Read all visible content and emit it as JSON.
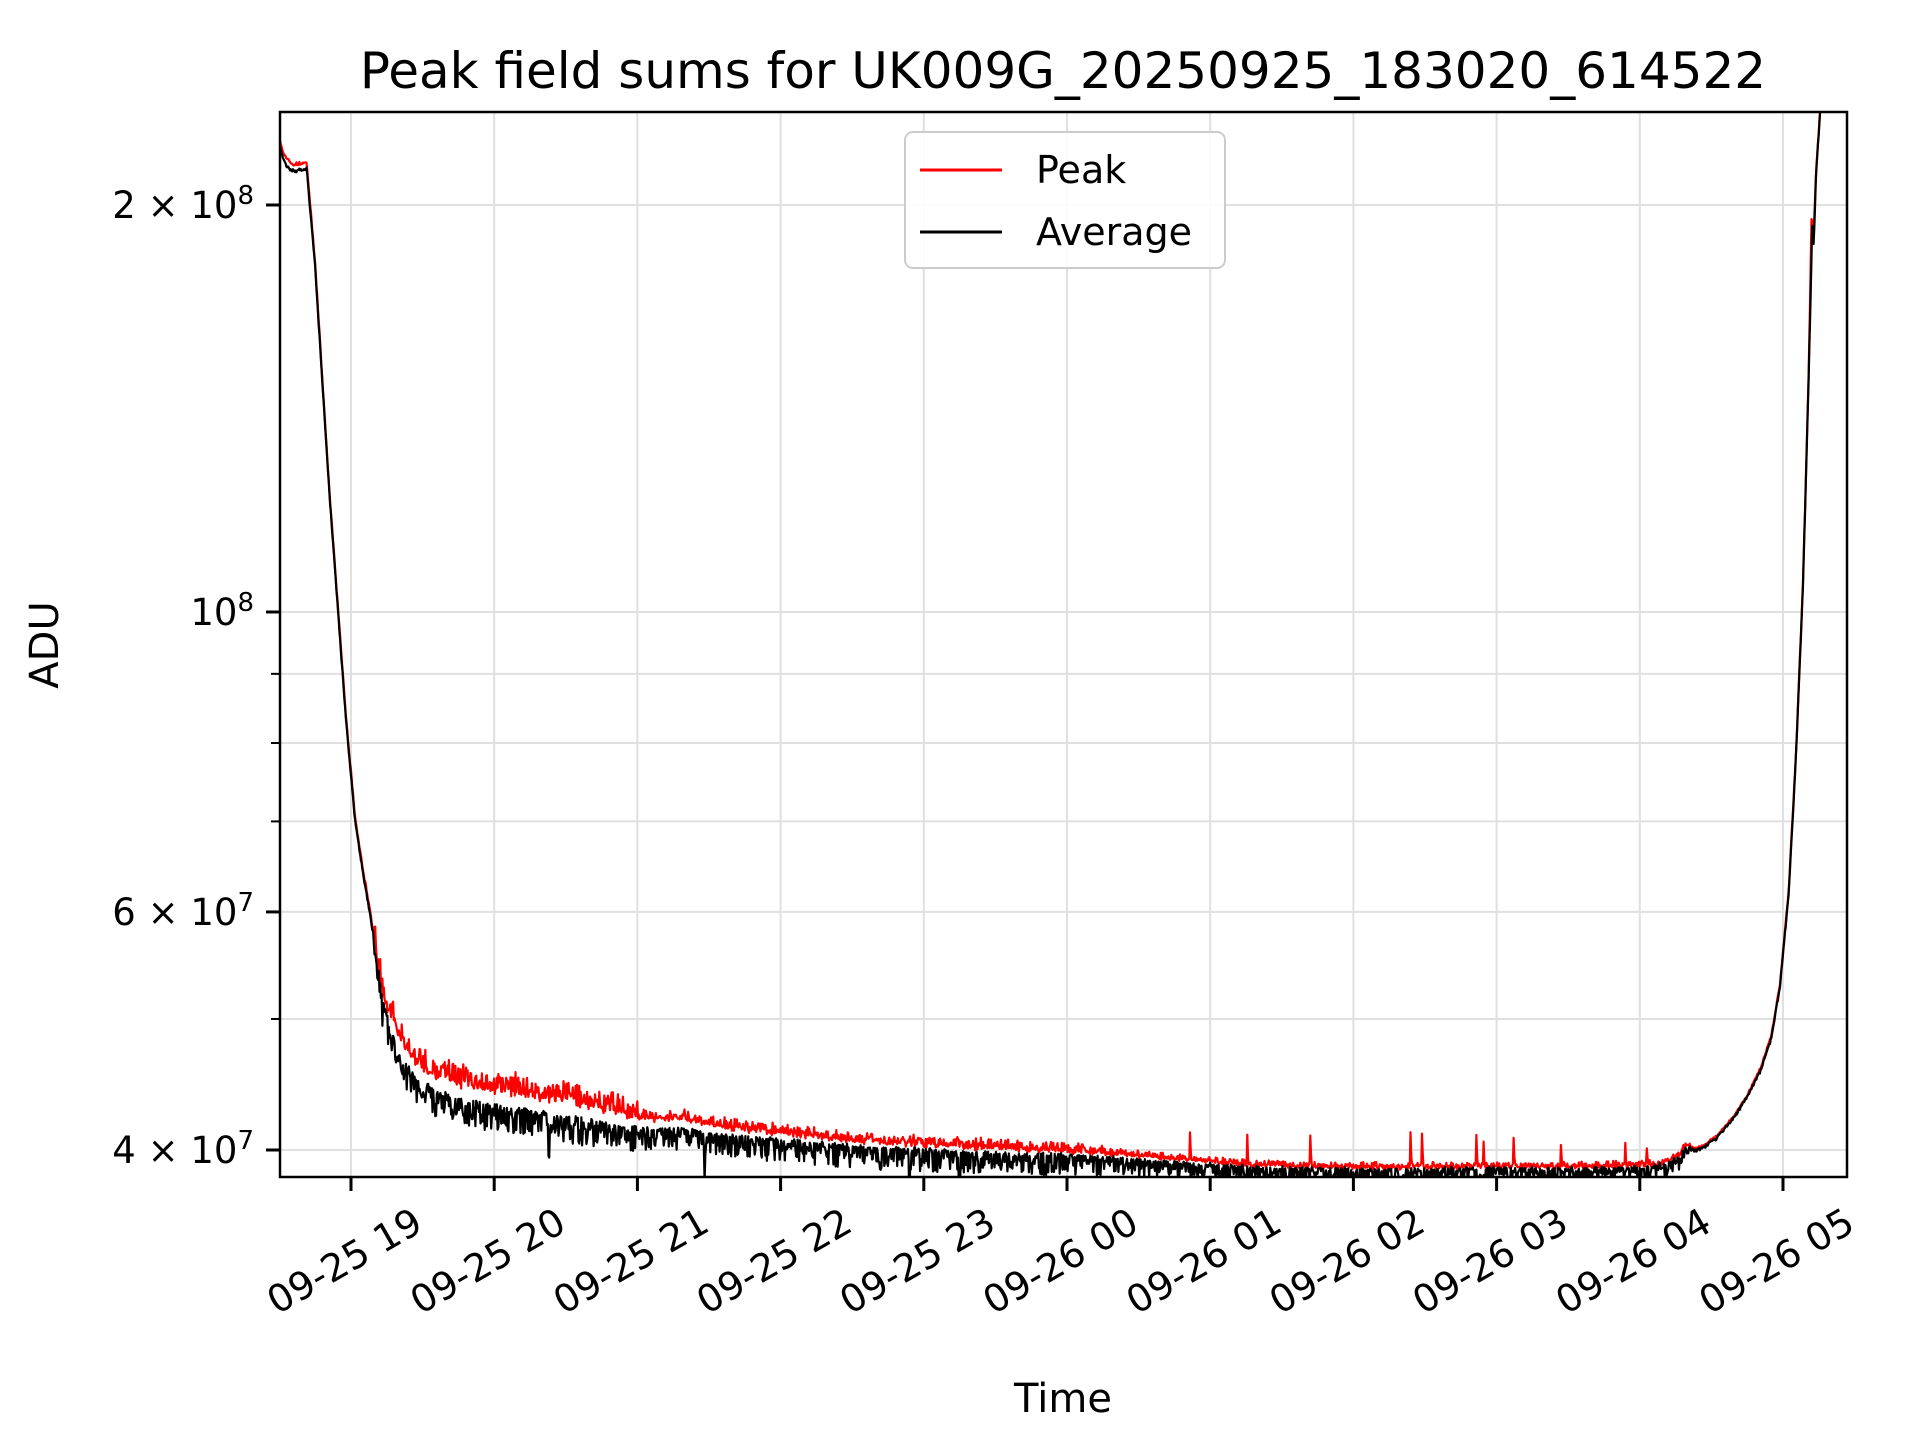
{
  "chart": {
    "title": "Peak field sums for UK009G_20250925_183020_614522",
    "xlabel": "Time",
    "ylabel": "ADU",
    "legend": {
      "position": "upper center",
      "entries": [
        {
          "label": "Peak",
          "color": "#ff0000"
        },
        {
          "label": "Average",
          "color": "#000000"
        }
      ]
    },
    "colors": {
      "grid": "#e0e0e0",
      "spine": "#000000",
      "legend_border": "#cccccc",
      "background": "#ffffff"
    }
  },
  "chart_data": {
    "type": "line",
    "title": "Peak field sums for UK009G_20250925_183020_614522",
    "xlabel": "Time",
    "ylabel": "ADU",
    "yscale": "log",
    "grid": true,
    "legend_position": "upper center",
    "x_unit": "hours since 2025-09-25 00:00 (values >24 are 09-26)",
    "xlim_hours": [
      18.504,
      29.447
    ],
    "ylim": [
      38200000,
      234300000
    ],
    "x_ticks": [
      {
        "hour": 19,
        "label": "09-25 19"
      },
      {
        "hour": 20,
        "label": "09-25 20"
      },
      {
        "hour": 21,
        "label": "09-25 21"
      },
      {
        "hour": 22,
        "label": "09-25 22"
      },
      {
        "hour": 23,
        "label": "09-25 23"
      },
      {
        "hour": 24,
        "label": "09-26 00"
      },
      {
        "hour": 25,
        "label": "09-26 01"
      },
      {
        "hour": 26,
        "label": "09-26 02"
      },
      {
        "hour": 27,
        "label": "09-26 03"
      },
      {
        "hour": 28,
        "label": "09-26 04"
      },
      {
        "hour": 29,
        "label": "09-26 05"
      }
    ],
    "y_ticks": [
      {
        "value": 200000000.0,
        "text": "2 × 10",
        "sup": "8",
        "labeled": true
      },
      {
        "value": 100000000.0,
        "text": "10",
        "sup": "8",
        "labeled": true
      },
      {
        "value": 90000000.0,
        "text": "",
        "sup": "",
        "labeled": false
      },
      {
        "value": 80000000.0,
        "text": "",
        "sup": "",
        "labeled": false
      },
      {
        "value": 70000000.0,
        "text": "",
        "sup": "",
        "labeled": false
      },
      {
        "value": 60000000.0,
        "text": "6 × 10",
        "sup": "7",
        "labeled": true
      },
      {
        "value": 50000000.0,
        "text": "",
        "sup": "",
        "labeled": false
      },
      {
        "value": 40000000.0,
        "text": "4 × 10",
        "sup": "7",
        "labeled": true
      }
    ],
    "series": [
      {
        "name": "Peak",
        "color": "#ff0000",
        "keypoints": [
          [
            18.504,
            223000000.0
          ],
          [
            18.53,
            218000000.0
          ],
          [
            18.56,
            216000000.0
          ],
          [
            18.6,
            214000000.0
          ],
          [
            18.64,
            214500000.0
          ],
          [
            18.69,
            215000000.0
          ],
          [
            18.75,
            180700000.0
          ],
          [
            18.8,
            148600000.0
          ],
          [
            18.85,
            122500000.0
          ],
          [
            18.91,
            100400000.0
          ],
          [
            18.97,
            82300000.0
          ],
          [
            19.03,
            70300000.0
          ],
          [
            19.08,
            64800000.0
          ],
          [
            19.13,
            60300000.0
          ],
          [
            19.18,
            55800000.0
          ],
          [
            19.22,
            52000000.0
          ],
          [
            19.28,
            50200000.0
          ],
          [
            19.35,
            48000000.0
          ],
          [
            19.45,
            46400000.0
          ],
          [
            19.6,
            45400000.0
          ],
          [
            19.8,
            44700000.0
          ],
          [
            20.0,
            44300000.0
          ],
          [
            20.3,
            43800000.0
          ],
          [
            20.6,
            43300000.0
          ],
          [
            20.9,
            42600000.0
          ],
          [
            21.1,
            42200000.0
          ],
          [
            21.35,
            42200000.0
          ],
          [
            21.5,
            41800000.0
          ],
          [
            21.8,
            41400000.0
          ],
          [
            22.1,
            41100000.0
          ],
          [
            22.4,
            40800000.0
          ],
          [
            22.7,
            40550000.0
          ],
          [
            23.0,
            40400000.0
          ],
          [
            23.4,
            40200000.0
          ],
          [
            23.8,
            40050000.0
          ],
          [
            24.1,
            39900000.0
          ],
          [
            24.4,
            39700000.0
          ],
          [
            24.7,
            39450000.0
          ],
          [
            25.0,
            39250000.0
          ],
          [
            25.3,
            39000000.0
          ],
          [
            25.6,
            38900000.0
          ],
          [
            26.0,
            38850000.0
          ],
          [
            26.5,
            38850000.0
          ],
          [
            27.0,
            38900000.0
          ],
          [
            27.5,
            38850000.0
          ],
          [
            27.9,
            38950000.0
          ],
          [
            28.1,
            39000000.0
          ],
          [
            28.2,
            39200000.0
          ],
          [
            28.28,
            39700000.0
          ],
          [
            28.33,
            40400000.0
          ],
          [
            28.38,
            40100000.0
          ],
          [
            28.45,
            40300000.0
          ],
          [
            28.55,
            41100000.0
          ],
          [
            28.65,
            42300000.0
          ],
          [
            28.75,
            43900000.0
          ],
          [
            28.85,
            46200000.0
          ],
          [
            28.92,
            48700000.0
          ],
          [
            28.98,
            53200000.0
          ],
          [
            29.04,
            62300000.0
          ],
          [
            29.09,
            78400000.0
          ],
          [
            29.14,
            105600000.0
          ],
          [
            29.18,
            151000000.0
          ],
          [
            29.2,
            198000000.0
          ],
          [
            29.212,
            188000000.0
          ],
          [
            29.23,
            211000000.0
          ],
          [
            29.26,
            236000000.0
          ],
          [
            29.32,
            291000000.0
          ],
          [
            29.447,
            351000000.0
          ]
        ],
        "noise": {
          "seed": 13,
          "dt": 0.005,
          "bands": [
            {
              "t0": 18.5,
              "t1": 19.15,
              "down": 0.001,
              "up": 0.002
            },
            {
              "t0": 19.15,
              "t1": 21.0,
              "down": 0.004,
              "up": 0.016
            },
            {
              "t0": 21.0,
              "t1": 24.3,
              "down": 0.003,
              "up": 0.007
            },
            {
              "t0": 24.3,
              "t1": 28.35,
              "down": 0.002,
              "up": 0.004
            },
            {
              "t0": 28.35,
              "t1": 29.45,
              "down": 0.001,
              "up": 0.001
            }
          ],
          "spikes": [
            {
              "t": 24.86,
              "h": 0.022
            },
            {
              "t": 25.26,
              "h": 0.022
            },
            {
              "t": 25.7,
              "h": 0.025
            },
            {
              "t": 26.4,
              "h": 0.03
            },
            {
              "t": 26.48,
              "h": 0.028
            },
            {
              "t": 26.86,
              "h": 0.022
            },
            {
              "t": 26.91,
              "h": 0.02
            },
            {
              "t": 27.12,
              "h": 0.022
            },
            {
              "t": 27.45,
              "h": 0.018
            },
            {
              "t": 27.9,
              "h": 0.015
            },
            {
              "t": 28.05,
              "h": 0.012
            }
          ],
          "dips": []
        }
      },
      {
        "name": "Average",
        "color": "#000000",
        "keypoints": [
          [
            18.504,
            221000000.0
          ],
          [
            18.53,
            216000000.0
          ],
          [
            18.56,
            213500000.0
          ],
          [
            18.6,
            212000000.0
          ],
          [
            18.64,
            212500000.0
          ],
          [
            18.69,
            213000000.0
          ],
          [
            18.75,
            180000000.0
          ],
          [
            18.8,
            148000000.0
          ],
          [
            18.85,
            122000000.0
          ],
          [
            18.91,
            100000000.0
          ],
          [
            18.97,
            82000000.0
          ],
          [
            19.03,
            70000000.0
          ],
          [
            19.08,
            64500000.0
          ],
          [
            19.13,
            60000000.0
          ],
          [
            19.18,
            55500000.0
          ],
          [
            19.22,
            51600000.0
          ],
          [
            19.28,
            49000000.0
          ],
          [
            19.35,
            46800000.0
          ],
          [
            19.45,
            45200000.0
          ],
          [
            19.6,
            44200000.0
          ],
          [
            19.8,
            43500000.0
          ],
          [
            20.0,
            43100000.0
          ],
          [
            20.3,
            42700000.0
          ],
          [
            20.6,
            42200000.0
          ],
          [
            20.9,
            41600000.0
          ],
          [
            21.1,
            41400000.0
          ],
          [
            21.35,
            41500000.0
          ],
          [
            21.5,
            41100000.0
          ],
          [
            21.8,
            40800000.0
          ],
          [
            22.1,
            40600000.0
          ],
          [
            22.4,
            40300000.0
          ],
          [
            22.7,
            40100000.0
          ],
          [
            23.0,
            40000000.0
          ],
          [
            23.4,
            39800000.0
          ],
          [
            23.8,
            39700000.0
          ],
          [
            24.1,
            39600000.0
          ],
          [
            24.4,
            39400000.0
          ],
          [
            24.7,
            39200000.0
          ],
          [
            25.0,
            39000000.0
          ],
          [
            25.3,
            38800000.0
          ],
          [
            25.6,
            38750000.0
          ],
          [
            26.0,
            38700000.0
          ],
          [
            26.5,
            38700000.0
          ],
          [
            27.0,
            38750000.0
          ],
          [
            27.5,
            38700000.0
          ],
          [
            27.9,
            38800000.0
          ],
          [
            28.1,
            38900000.0
          ],
          [
            28.2,
            39100000.0
          ],
          [
            28.28,
            39600000.0
          ],
          [
            28.33,
            40300000.0
          ],
          [
            28.38,
            40000000.0
          ],
          [
            28.45,
            40200000.0
          ],
          [
            28.55,
            41000000.0
          ],
          [
            28.65,
            42200000.0
          ],
          [
            28.75,
            43800000.0
          ],
          [
            28.85,
            46000000.0
          ],
          [
            28.92,
            48500000.0
          ],
          [
            28.98,
            53000000.0
          ],
          [
            29.04,
            62000000.0
          ],
          [
            29.09,
            78000000.0
          ],
          [
            29.14,
            105000000.0
          ],
          [
            29.18,
            150000000.0
          ],
          [
            29.205,
            195000000.0
          ],
          [
            29.215,
            187000000.0
          ],
          [
            29.23,
            210000000.0
          ],
          [
            29.26,
            235000000.0
          ],
          [
            29.32,
            290000000.0
          ],
          [
            29.447,
            350000000.0
          ]
        ],
        "noise": {
          "seed": 7,
          "dt": 0.005,
          "bands": [
            {
              "t0": 18.5,
              "t1": 19.15,
              "down": 0.002,
              "up": 0.001
            },
            {
              "t0": 19.15,
              "t1": 21.0,
              "down": 0.02,
              "up": 0.002
            },
            {
              "t0": 21.0,
              "t1": 24.3,
              "down": 0.016,
              "up": 0.002
            },
            {
              "t0": 24.3,
              "t1": 28.35,
              "down": 0.013,
              "up": 0.002
            },
            {
              "t0": 28.35,
              "t1": 29.45,
              "down": 0.002,
              "up": 0.001
            }
          ],
          "spikes": [],
          "dips": [
            {
              "t": 20.38,
              "d": 0.03
            },
            {
              "t": 21.47,
              "d": 0.032
            },
            {
              "t": 22.9,
              "d": 0.028
            },
            {
              "t": 23.25,
              "d": 0.03
            },
            {
              "t": 25.54,
              "d": 0.035
            },
            {
              "t": 26.33,
              "d": 0.035
            }
          ]
        }
      }
    ]
  }
}
